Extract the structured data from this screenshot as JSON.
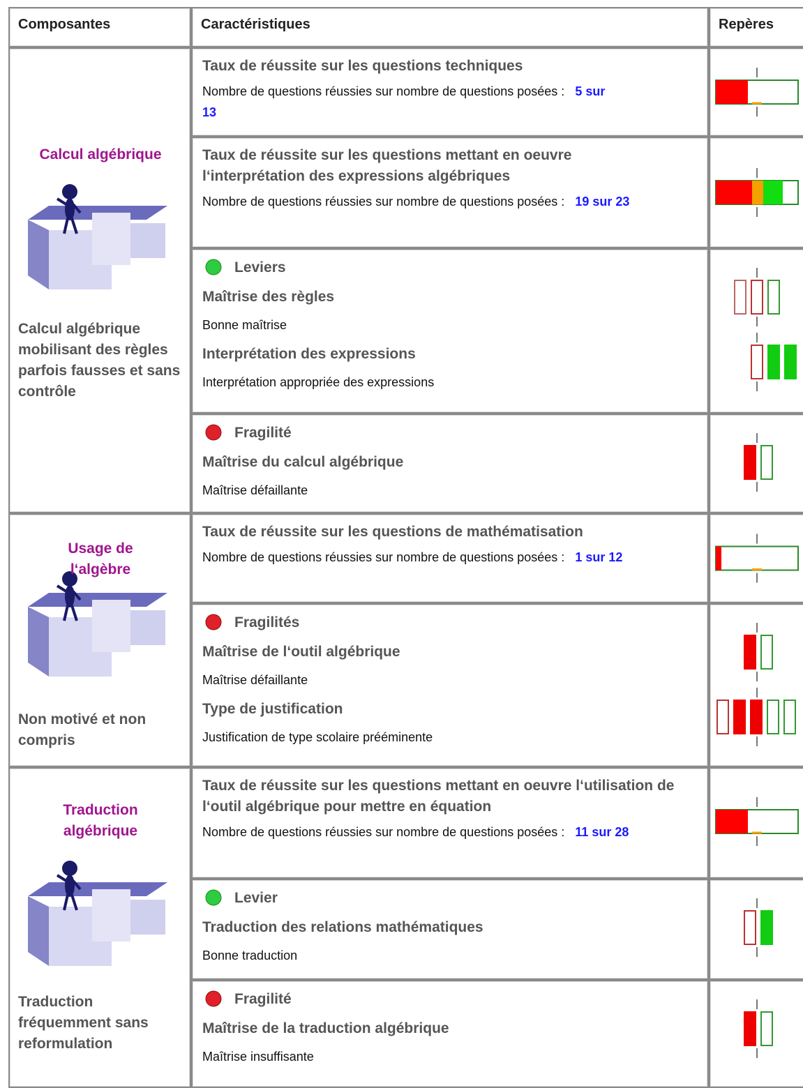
{
  "header": {
    "components": "Composantes",
    "characteristics": "Caractéristiques",
    "markers": "Repères"
  },
  "sections": [
    {
      "title": "Calcul algébrique",
      "description": "Calcul algébrique mobilisant des règles parfois fausses et sans contrôle",
      "rows": [
        {
          "title": "Taux de réussite sur les questions techniques",
          "text": "Nombre de questions réussies sur nombre de questions posées :",
          "score": "5 sur 13"
        },
        {
          "title": "Taux de réussite sur les questions mettant en oeuvre l‘interprétation des expressions algébriques",
          "text": "Nombre de questions réussies sur nombre de questions posées :",
          "score": "19 sur 23"
        },
        {
          "heading": "Leviers",
          "items": [
            {
              "title": "Maîtrise des règles",
              "text": "Bonne maîtrise"
            },
            {
              "title": "Interprétation des expressions",
              "text": "Interprétation appropriée des expressions"
            }
          ]
        },
        {
          "heading": "Fragilité",
          "items": [
            {
              "title": "Maîtrise du calcul algébrique",
              "text": "Maîtrise défaillante"
            }
          ]
        }
      ]
    },
    {
      "title": "Usage de l‘algèbre",
      "description": "Non motivé et non compris",
      "rows": [
        {
          "title": "Taux de réussite sur les questions de mathématisation",
          "text": "Nombre de questions réussies sur nombre de questions posées :",
          "score": "1 sur 12"
        },
        {
          "heading": "Fragilités",
          "items": [
            {
              "title": "Maîtrise de l‘outil algébrique",
              "text": "Maîtrise défaillante"
            },
            {
              "title": "Type de justification",
              "text": "Justification de type scolaire prééminente"
            }
          ]
        }
      ]
    },
    {
      "title": "Traduction algébrique",
      "description": "Traduction fréquemment sans reformulation",
      "rows": [
        {
          "title": "Taux de réussite sur les questions mettant en oeuvre l‘utilisation de l‘outil algébrique pour mettre en équation",
          "text": "Nombre de questions réussies sur nombre de questions posées :",
          "score": "11 sur 28"
        },
        {
          "heading": "Levier",
          "items": [
            {
              "title": "Traduction des relations mathématiques",
              "text": "Bonne traduction"
            }
          ]
        },
        {
          "heading": "Fragilité",
          "items": [
            {
              "title": "Maîtrise de la traduction algébrique",
              "text": "Maîtrise insuffisante"
            }
          ]
        }
      ]
    }
  ]
}
